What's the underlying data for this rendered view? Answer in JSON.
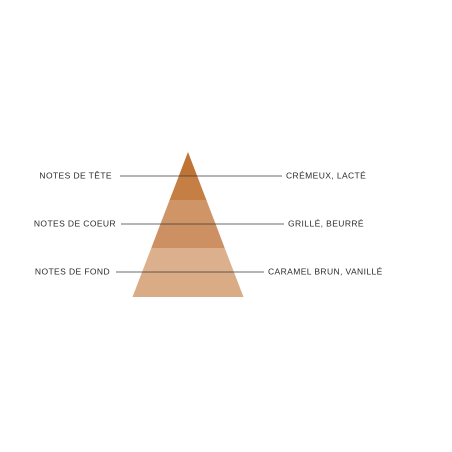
{
  "tiers": [
    {
      "label": "NOTES DE TÊTE",
      "notes": "CRÉMEUX, LACTÉ"
    },
    {
      "label": "NOTES DE COEUR",
      "notes": "GRILLÉ, BEURRÉ"
    },
    {
      "label": "NOTES DE FOND",
      "notes": "CARAMEL BRUN, VANILLÉ"
    }
  ]
}
